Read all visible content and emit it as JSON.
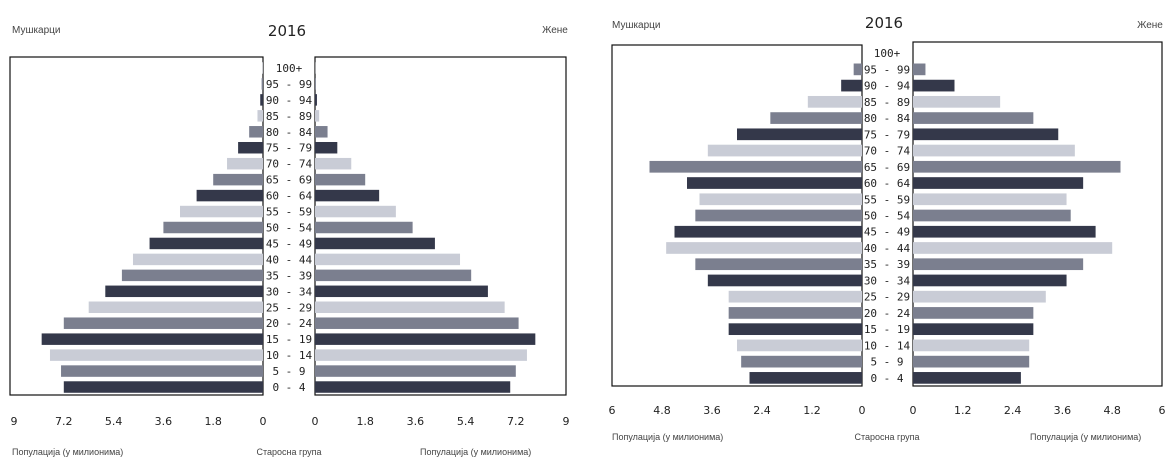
{
  "chart_data": [
    {
      "type": "bar",
      "title": "2016",
      "left_label": "Мушкарци",
      "right_label": "Жене",
      "xlabel_left": "Популација (у милионима)",
      "xlabel_center": "Старосна група",
      "xlabel_right": "Популација (у милионима)",
      "xlim": [
        0,
        9
      ],
      "ticks_left": [
        "9",
        "7.2",
        "5.4",
        "3.6",
        "1.8",
        "0"
      ],
      "ticks_right": [
        "0",
        "1.8",
        "3.6",
        "5.4",
        "7.2",
        "9"
      ],
      "categories": [
        "0 - 4",
        "5 - 9",
        "10 - 14",
        "15 - 19",
        "20 - 24",
        "25 - 29",
        "30 - 34",
        "35 - 39",
        "40 - 44",
        "45 - 49",
        "50 - 54",
        "55 - 59",
        "60 - 64",
        "65 - 69",
        "70 - 74",
        "75 - 79",
        "80 - 84",
        "85 - 89",
        "90 - 94",
        "95 - 99",
        "100+"
      ],
      "series": [
        {
          "name": "Мушкарци",
          "values": [
            7.2,
            7.3,
            7.7,
            8.0,
            7.2,
            6.3,
            5.7,
            5.1,
            4.7,
            4.1,
            3.6,
            3.0,
            2.4,
            1.8,
            1.3,
            0.9,
            0.5,
            0.2,
            0.1,
            0.05,
            0.02
          ]
        },
        {
          "name": "Жене",
          "values": [
            7.0,
            7.2,
            7.6,
            7.9,
            7.3,
            6.8,
            6.2,
            5.6,
            5.2,
            4.3,
            3.5,
            2.9,
            2.3,
            1.8,
            1.3,
            0.8,
            0.45,
            0.15,
            0.07,
            0.03,
            0.01
          ]
        }
      ]
    },
    {
      "type": "bar",
      "title": "2016",
      "left_label": "Мушкарци",
      "right_label": "Жене",
      "xlabel_left": "Популација (у милионима)",
      "xlabel_center": "Старосна група",
      "xlabel_right": "Популација (у милионима)",
      "xlim": [
        0,
        6
      ],
      "ticks_left": [
        "6",
        "4.8",
        "3.6",
        "2.4",
        "1.2",
        "0"
      ],
      "ticks_right": [
        "0",
        "1.2",
        "2.4",
        "3.6",
        "4.8",
        "6"
      ],
      "categories": [
        "0 - 4",
        "5 - 9",
        "10 - 14",
        "15 - 19",
        "20 - 24",
        "25 - 29",
        "30 - 34",
        "35 - 39",
        "40 - 44",
        "45 - 49",
        "50 - 54",
        "55 - 59",
        "60 - 64",
        "65 - 69",
        "70 - 74",
        "75 - 79",
        "80 - 84",
        "85 - 89",
        "90 - 94",
        "95 - 99",
        "100+"
      ],
      "series": [
        {
          "name": "Мушкарци",
          "values": [
            2.7,
            2.9,
            3.0,
            3.2,
            3.2,
            3.2,
            3.7,
            4.0,
            4.7,
            4.5,
            4.0,
            3.9,
            4.2,
            5.1,
            3.7,
            3.0,
            2.2,
            1.3,
            0.5,
            0.2,
            0.0
          ]
        },
        {
          "name": "Жене",
          "values": [
            2.6,
            2.8,
            2.8,
            2.9,
            2.9,
            3.2,
            3.7,
            4.1,
            4.8,
            4.4,
            3.8,
            3.7,
            4.1,
            5.0,
            3.9,
            3.5,
            2.9,
            2.1,
            1.0,
            0.3,
            0.0
          ]
        }
      ]
    }
  ],
  "colors": {
    "frame": "#111111",
    "bar_dark": "#34384a",
    "bar_mid": "#7b7f8f",
    "bar_light": "#c9ccd6"
  }
}
